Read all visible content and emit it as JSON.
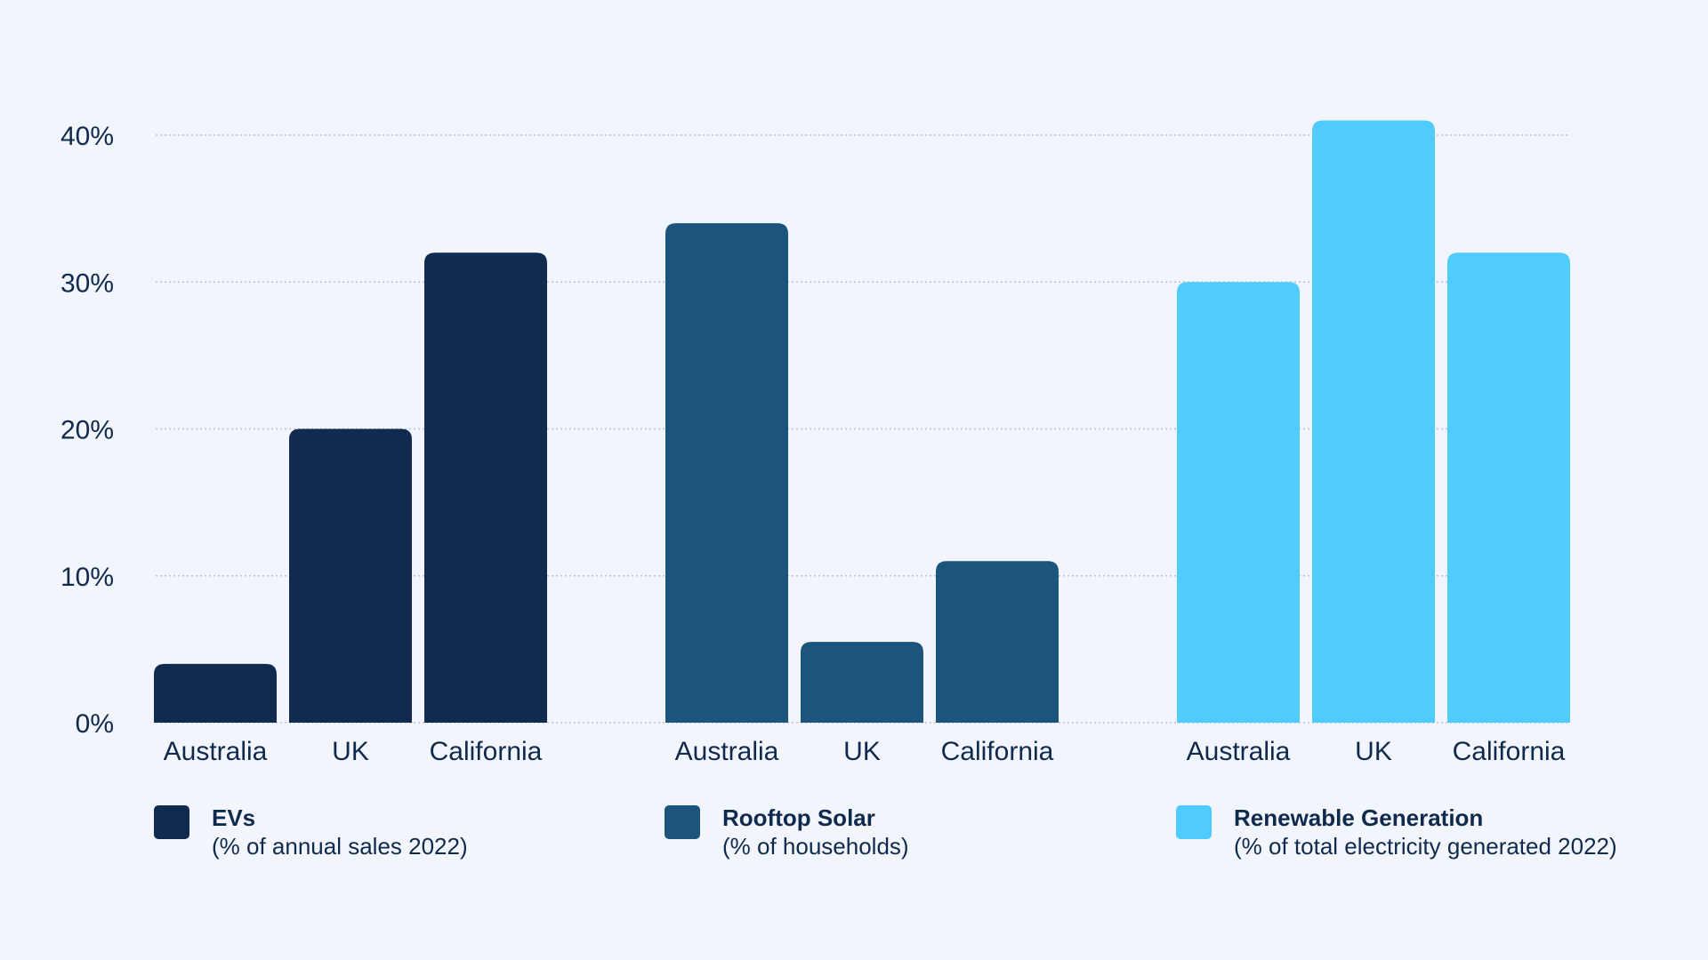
{
  "chart_data": {
    "type": "bar",
    "ylim": [
      0,
      40
    ],
    "yticks": [
      0,
      10,
      20,
      30,
      40
    ],
    "ytick_labels": [
      "0%",
      "10%",
      "20%",
      "30%",
      "40%"
    ],
    "grid": "horizontal dotted",
    "legend_placement": "bottom",
    "groups": [
      {
        "name": "EVs",
        "note": "(% of annual sales 2022)",
        "color": "#112a4f",
        "categories": [
          "Australia",
          "UK",
          "California"
        ],
        "values": [
          4,
          20,
          32
        ]
      },
      {
        "name": "Rooftop Solar",
        "note": "(% of households)",
        "color": "#1b557e",
        "categories": [
          "Australia",
          "UK",
          "California"
        ],
        "values": [
          34,
          5.5,
          11
        ]
      },
      {
        "name": "Renewable Generation",
        "note": "(% of total electricity generated 2022)",
        "color": "#50cbfd",
        "categories": [
          "Australia",
          "UK",
          "California"
        ],
        "values": [
          30,
          41,
          32
        ]
      }
    ]
  }
}
